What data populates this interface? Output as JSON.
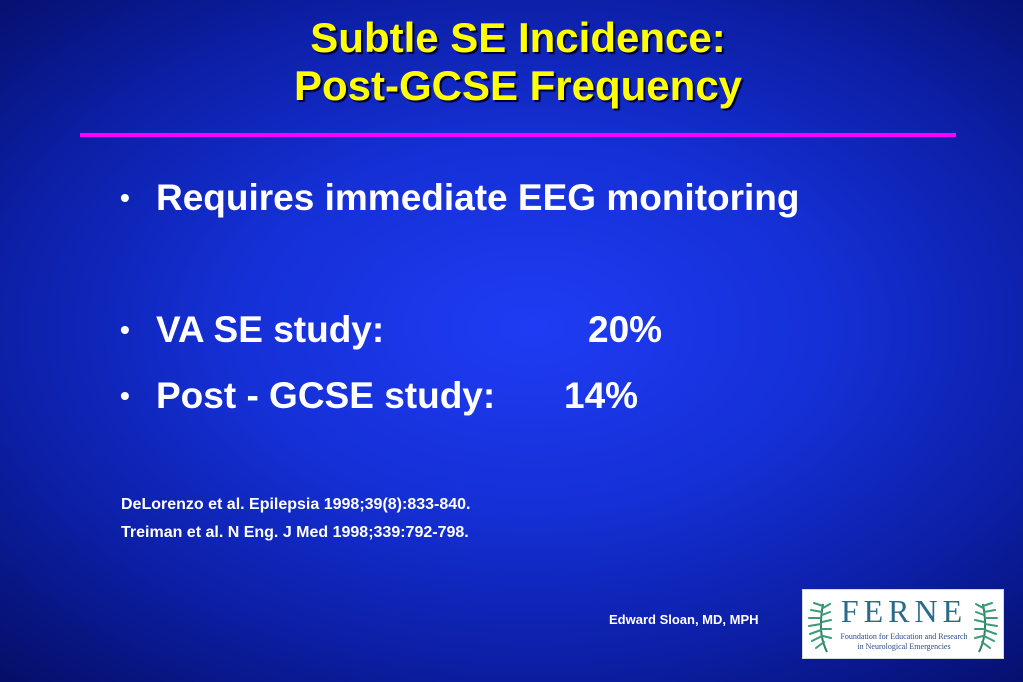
{
  "slide": {
    "title_lines": [
      "Subtle SE Incidence:",
      "Post-GCSE Frequency"
    ],
    "bullets": [
      {
        "text": "Requires immediate EEG monitoring",
        "value": ""
      },
      {
        "text": "VA SE study:",
        "value": "20%"
      },
      {
        "text": "Post - GCSE study:",
        "value": "14%"
      }
    ],
    "bullet_glyph": "•",
    "references": [
      "DeLorenzo et al. Epilepsia 1998;39(8):833-840.",
      "Treiman et al. N Eng. J Med 1998;339:792-798."
    ],
    "author": "Edward Sloan, MD, MPH"
  },
  "logo": {
    "wordmark": "FERNE",
    "subtitle_lines": [
      "Foundation for Education and Research",
      "in Neurological Emergencies"
    ]
  },
  "colors": {
    "background": "#1530d6",
    "title": "#ffff00",
    "rule": "#ff00ff",
    "text": "#ffffff",
    "logo_teal": "#2a6a8a"
  },
  "icons": {
    "logo_left": "fern-leaf-icon",
    "logo_right": "fern-leaf-icon"
  }
}
